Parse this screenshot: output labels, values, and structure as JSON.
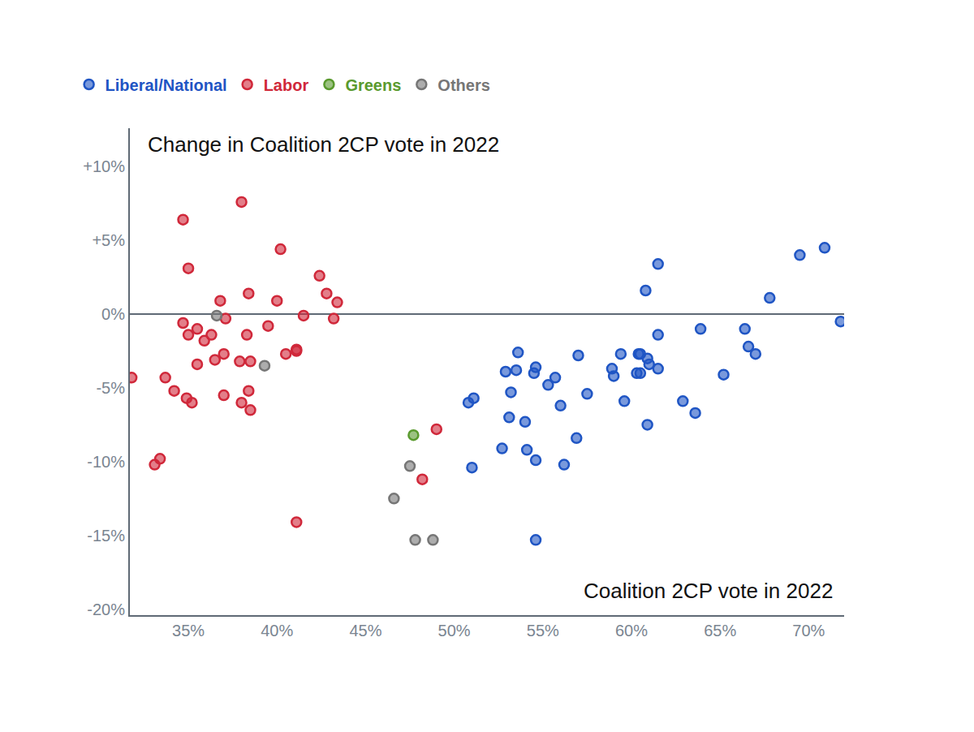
{
  "chart_data": {
    "type": "scatter",
    "x_label": "Coalition 2CP vote in 2022",
    "y_label": "Change in Coalition 2CP vote in 2022",
    "xlim": [
      31.7,
      72
    ],
    "ylim": [
      -20.4,
      12.6
    ],
    "xticks": [
      {
        "value": 35,
        "label": "35%"
      },
      {
        "value": 40,
        "label": "40%"
      },
      {
        "value": 45,
        "label": "45%"
      },
      {
        "value": 50,
        "label": "50%"
      },
      {
        "value": 55,
        "label": "55%"
      },
      {
        "value": 60,
        "label": "60%"
      },
      {
        "value": 65,
        "label": "65%"
      },
      {
        "value": 70,
        "label": "70%"
      }
    ],
    "yticks": [
      {
        "value": 10,
        "label": "+10%"
      },
      {
        "value": 5,
        "label": "+5%"
      },
      {
        "value": 0,
        "label": "0%"
      },
      {
        "value": -5,
        "label": "-5%"
      },
      {
        "value": -10,
        "label": "-10%"
      },
      {
        "value": -15,
        "label": "-15%"
      },
      {
        "value": -20,
        "label": "-20%"
      }
    ],
    "grid": false,
    "legend": "top-left",
    "marker": "circle",
    "series": [
      {
        "name": "Liberal/National",
        "color": "#1f55c4",
        "x": [
          50.8,
          51.1,
          51.0,
          52.7,
          52.9,
          53.2,
          53.5,
          53.6,
          53.1,
          54.0,
          54.1,
          54.5,
          54.6,
          54.6,
          54.6,
          55.3,
          55.7,
          56.0,
          56.2,
          56.9,
          57.0,
          57.5,
          58.9,
          59.0,
          59.4,
          59.6,
          60.4,
          60.5,
          60.3,
          60.5,
          60.8,
          60.9,
          61.0,
          60.9,
          61.5,
          61.5,
          61.5,
          62.9,
          63.6,
          63.9,
          65.2,
          66.4,
          66.6,
          67.0,
          67.8,
          69.5,
          70.9,
          71.8
        ],
        "values": [
          -6.0,
          -5.7,
          -10.4,
          -9.1,
          -3.9,
          -5.3,
          -3.8,
          -2.6,
          -7.0,
          -7.3,
          -9.2,
          -4.0,
          -3.6,
          -9.9,
          -15.3,
          -4.8,
          -4.3,
          -6.2,
          -10.2,
          -8.4,
          -2.8,
          -5.4,
          -3.7,
          -4.2,
          -2.7,
          -5.9,
          -2.7,
          -2.7,
          -4.0,
          -4.0,
          1.6,
          -3.0,
          -3.4,
          -7.5,
          3.4,
          -1.4,
          -3.7,
          -5.9,
          -6.7,
          -1.0,
          -4.1,
          -1.0,
          -2.2,
          -2.7,
          1.1,
          4.0,
          4.5,
          -0.5
        ]
      },
      {
        "name": "Labor",
        "color": "#d0283a",
        "x": [
          31.8,
          34.7,
          38.0,
          35.0,
          40.2,
          42.4,
          36.8,
          38.4,
          40.0,
          42.8,
          43.4,
          41.5,
          43.2,
          37.1,
          34.7,
          35.5,
          35.0,
          36.3,
          35.9,
          39.5,
          38.3,
          37.0,
          36.5,
          35.5,
          37.9,
          38.5,
          40.5,
          41.1,
          41.1,
          33.7,
          34.2,
          34.9,
          35.2,
          37.0,
          38.4,
          38.0,
          38.5,
          33.1,
          33.4,
          41.1,
          49.0,
          48.2
        ],
        "values": [
          -4.3,
          6.4,
          7.6,
          3.1,
          4.4,
          2.6,
          0.9,
          1.4,
          0.9,
          1.4,
          0.8,
          -0.1,
          -0.3,
          -0.3,
          -0.6,
          -1.0,
          -1.4,
          -1.4,
          -1.8,
          -0.8,
          -1.4,
          -2.7,
          -3.1,
          -3.4,
          -3.2,
          -3.2,
          -2.7,
          -2.4,
          -2.5,
          -4.3,
          -5.2,
          -5.7,
          -6.0,
          -5.5,
          -5.2,
          -6.0,
          -6.5,
          -10.2,
          -9.8,
          -14.1,
          -7.8,
          -11.2
        ]
      },
      {
        "name": "Greens",
        "color": "#5a9a2e",
        "x": [
          47.7
        ],
        "values": [
          -8.2
        ]
      },
      {
        "name": "Others",
        "color": "#767676",
        "x": [
          36.6,
          39.3,
          47.5,
          46.6,
          47.8,
          48.8
        ],
        "values": [
          -0.1,
          -3.5,
          -10.3,
          -12.5,
          -15.3,
          -15.3
        ]
      }
    ]
  }
}
